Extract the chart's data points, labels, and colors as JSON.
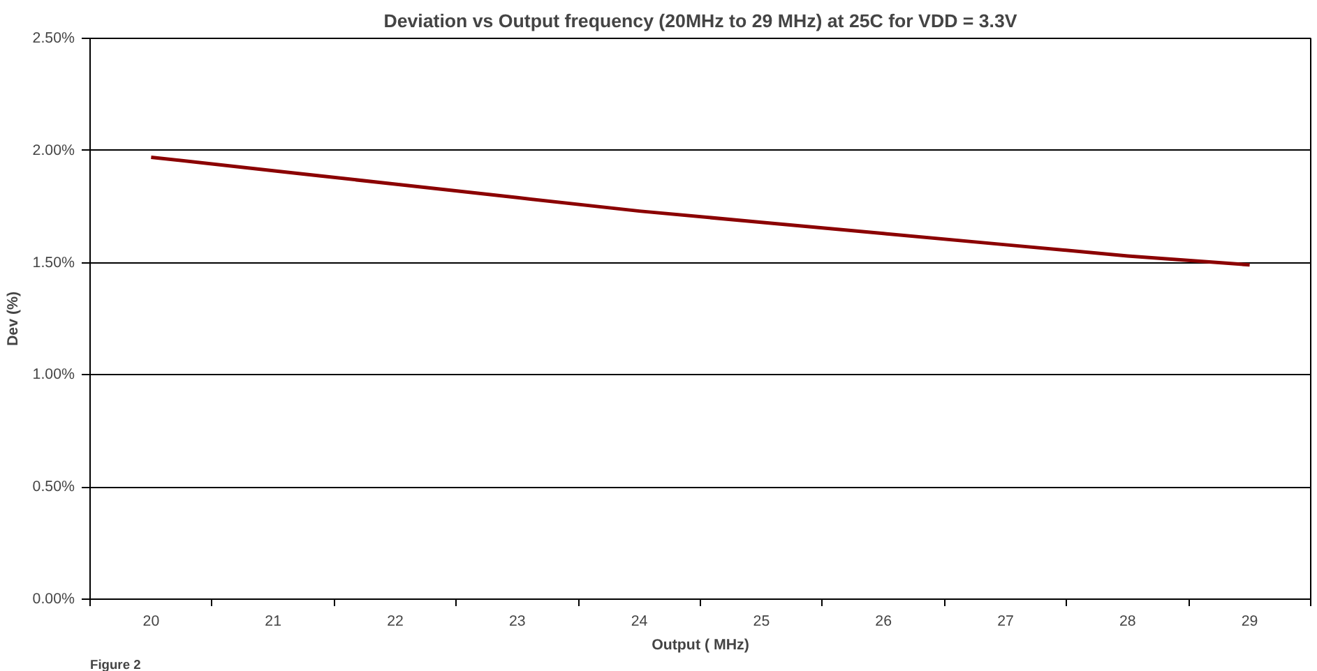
{
  "chart_data": {
    "type": "line",
    "title": "Deviation vs Output frequency (20MHz to 29 MHz) at 25C for VDD = 3.3V",
    "xlabel": "Output ( MHz)",
    "ylabel": "Dev (%)",
    "categories": [
      "20",
      "21",
      "22",
      "23",
      "24",
      "25",
      "26",
      "27",
      "28",
      "29"
    ],
    "series": [
      {
        "color": "#8b0000",
        "values": [
          1.97,
          1.91,
          1.85,
          1.79,
          1.73,
          1.68,
          1.63,
          1.58,
          1.53,
          1.49
        ]
      }
    ],
    "ylim": [
      0,
      2.5
    ],
    "yticks": [
      {
        "value": 0,
        "label": "0.00%"
      },
      {
        "value": 0.5,
        "label": "0.50%"
      },
      {
        "value": 1.0,
        "label": "1.00%"
      },
      {
        "value": 1.5,
        "label": "1.50%"
      },
      {
        "value": 2.0,
        "label": "2.00%"
      },
      {
        "value": 2.5,
        "label": "2.50%"
      }
    ],
    "grid": "y",
    "marker": "none",
    "line_style": "solid",
    "annotations": [
      "Figure 2"
    ]
  }
}
